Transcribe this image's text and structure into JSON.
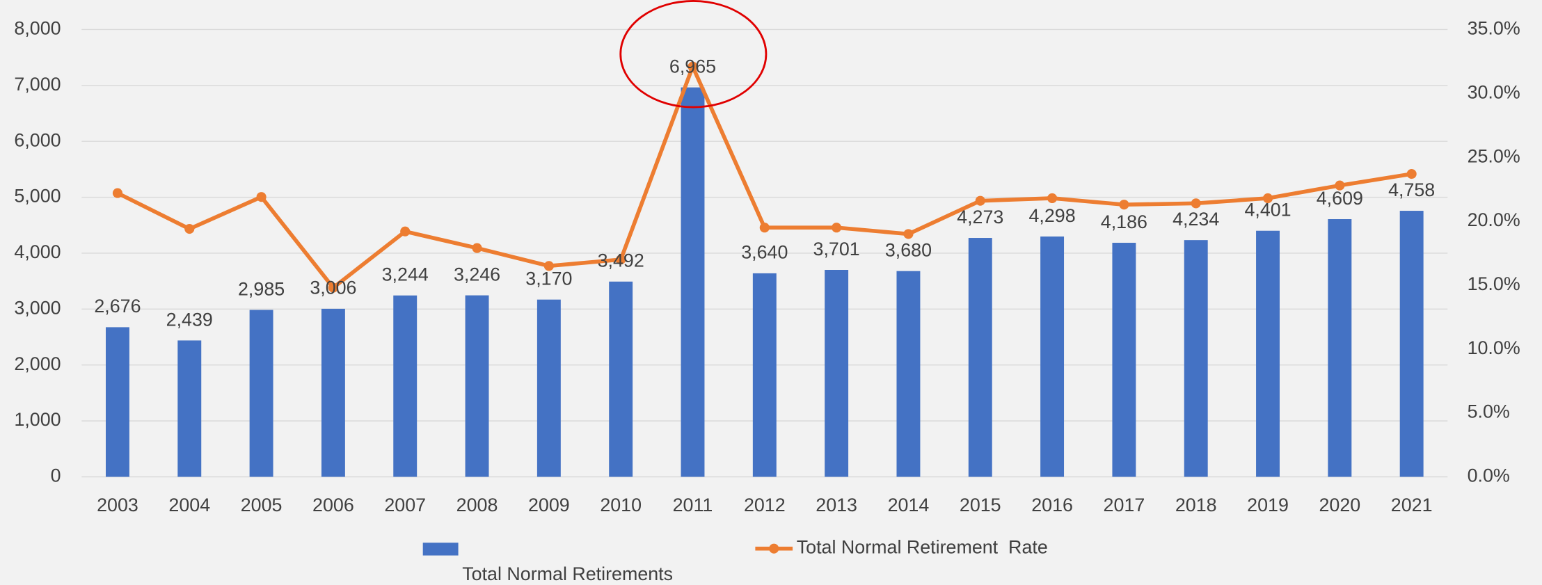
{
  "chart_data": {
    "type": "bar-line",
    "categories": [
      "2003",
      "2004",
      "2005",
      "2006",
      "2007",
      "2008",
      "2009",
      "2010",
      "2011",
      "2012",
      "2013",
      "2014",
      "2015",
      "2016",
      "2017",
      "2018",
      "2019",
      "2020",
      "2021"
    ],
    "series": [
      {
        "name": "Total Normal Retirements",
        "type": "bar",
        "color": "#4472c4",
        "values": [
          2676,
          2439,
          2985,
          3006,
          3244,
          3246,
          3170,
          3492,
          6965,
          3640,
          3701,
          3680,
          4273,
          4298,
          4186,
          4234,
          4401,
          4609,
          4758
        ],
        "value_labels": [
          "2,676",
          "2,439",
          "2,985",
          "3,006",
          "3,244",
          "3,246",
          "3,170",
          "3,492",
          "6,965",
          "3,640",
          "3,701",
          "3,680",
          "4,273",
          "4,298",
          "4,186",
          "4,234",
          "4,401",
          "4,609",
          "4,758"
        ]
      },
      {
        "name": "Total Normal Retirement  Rate",
        "type": "line",
        "axis": "y2",
        "color": "#ed7d31",
        "values": [
          22.2,
          19.4,
          21.9,
          14.8,
          19.2,
          17.9,
          16.5,
          17.0,
          32.1,
          19.5,
          19.5,
          19.0,
          21.6,
          21.8,
          21.3,
          21.4,
          21.8,
          22.8,
          23.7
        ]
      }
    ],
    "ylim": [
      0,
      8000
    ],
    "yticks": [
      0,
      {
        "value": 1000,
        "label": "1,000"
      },
      {
        "value": 2000,
        "label": "2,000"
      },
      {
        "value": 3000,
        "label": "3,000"
      },
      {
        "value": 4000,
        "label": "4,000"
      },
      {
        "value": 5000,
        "label": "5,000"
      },
      {
        "value": 6000,
        "label": "6,000"
      },
      {
        "value": 7000,
        "label": "7,000"
      },
      {
        "value": 8000,
        "label": "8,000"
      }
    ],
    "y2lim": [
      0,
      35
    ],
    "y2ticks": [
      {
        "value": 0,
        "label": "0.0%"
      },
      {
        "value": 5,
        "label": "5.0%"
      },
      {
        "value": 10,
        "label": "10.0%"
      },
      {
        "value": 15,
        "label": "15.0%"
      },
      {
        "value": 20,
        "label": "20.0%"
      },
      {
        "value": 25,
        "label": "25.0%"
      },
      {
        "value": 30,
        "label": "30.0%"
      },
      {
        "value": 35,
        "label": "35.0%"
      }
    ],
    "grid": true
  }
}
